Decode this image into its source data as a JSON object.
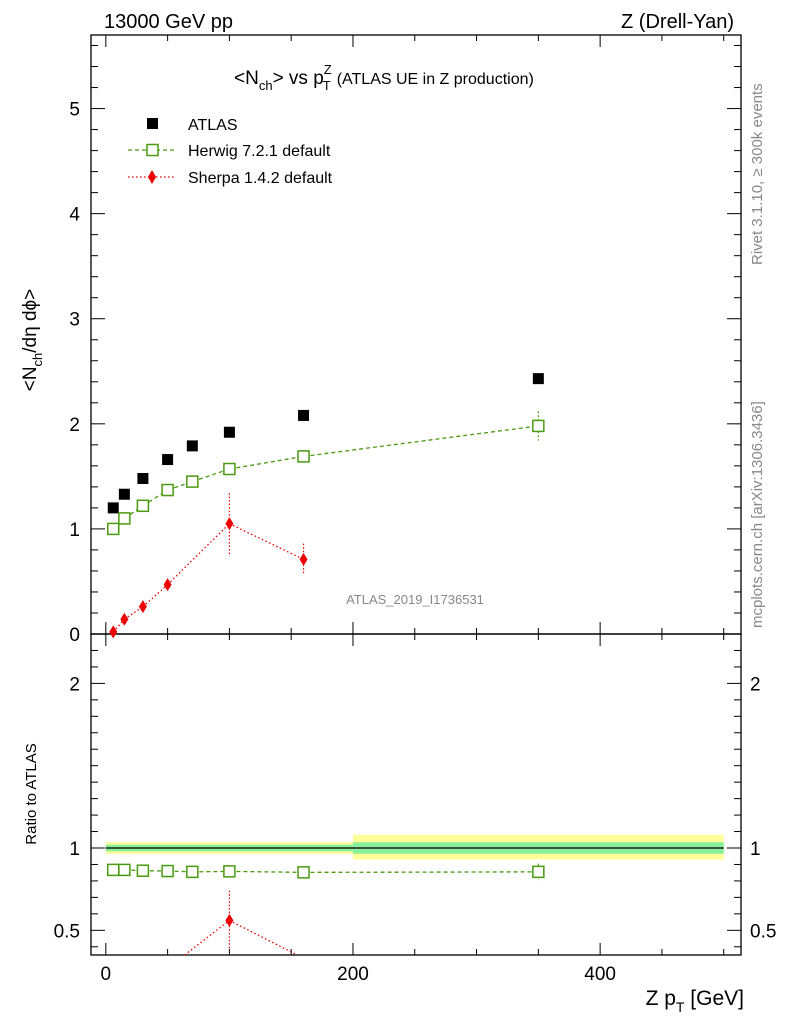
{
  "header": {
    "left": "13000 GeV pp",
    "right": "Z (Drell-Yan)"
  },
  "title": {
    "prefix": "<N",
    "sub": "ch",
    "mid": "> vs p",
    "sup": "Z",
    "subT": "T",
    "suffix": "(ATLAS UE in Z production)"
  },
  "side_text": {
    "rivet": "Rivet 3.1.10, ≥ 300k events",
    "mcplots": "mcplots.cern.ch [arXiv:1306.3436]"
  },
  "watermark": "ATLAS_2019_I1736531",
  "y_label_main": {
    "a": "<N",
    "sub": "ch",
    "b": "/dη dϕ>"
  },
  "y_label_ratio": "Ratio to ATLAS",
  "x_label": {
    "a": "Z p",
    "sub": "T",
    "b": " [GeV]"
  },
  "chart_data": [
    {
      "type": "scatter",
      "panel": "main",
      "xlim": [
        -12,
        514
      ],
      "ylim": [
        0,
        5.7
      ],
      "xticks": [
        0,
        200,
        400
      ],
      "yticks": [
        0,
        1,
        2,
        3,
        4,
        5
      ],
      "ytick_labels": [
        "0",
        "1",
        "2",
        "3",
        "4",
        "5"
      ],
      "legend_position": "top-left",
      "series": [
        {
          "name": "ATLAS",
          "color": "#000000",
          "marker": "filled-square",
          "points": [
            {
              "x": 6,
              "y": 1.2
            },
            {
              "x": 15,
              "y": 1.33
            },
            {
              "x": 30,
              "y": 1.48
            },
            {
              "x": 50,
              "y": 1.66
            },
            {
              "x": 70,
              "y": 1.79
            },
            {
              "x": 100,
              "y": 1.92
            },
            {
              "x": 160,
              "y": 2.08
            },
            {
              "x": 350,
              "y": 2.43
            }
          ]
        },
        {
          "name": "Herwig 7.2.1 default",
          "color": "#4a9a10",
          "marker": "open-square",
          "line": "dashed",
          "points": [
            {
              "x": 6,
              "y": 1.0,
              "err": 0.02
            },
            {
              "x": 15,
              "y": 1.1,
              "err": 0.02
            },
            {
              "x": 30,
              "y": 1.22,
              "err": 0.02
            },
            {
              "x": 50,
              "y": 1.37,
              "err": 0.02
            },
            {
              "x": 70,
              "y": 1.45,
              "err": 0.02
            },
            {
              "x": 100,
              "y": 1.57,
              "err": 0.02
            },
            {
              "x": 160,
              "y": 1.69,
              "err": 0.03
            },
            {
              "x": 350,
              "y": 1.98,
              "err": 0.14
            }
          ]
        },
        {
          "name": "Sherpa 1.4.2 default",
          "color": "#ee0000",
          "marker": "filled-diamond",
          "line": "dotted",
          "points": [
            {
              "x": 6,
              "y": 0.02,
              "err": 0.03
            },
            {
              "x": 15,
              "y": 0.14,
              "err": 0.05
            },
            {
              "x": 30,
              "y": 0.26,
              "err": 0.05
            },
            {
              "x": 50,
              "y": 0.47,
              "err": 0.03
            },
            {
              "x": 100,
              "y": 1.05,
              "err": 0.29
            },
            {
              "x": 160,
              "y": 0.71,
              "err": 0.15
            }
          ]
        }
      ]
    },
    {
      "type": "scatter",
      "panel": "ratio",
      "xlim": [
        -12,
        514
      ],
      "ylim": [
        0.35,
        2.3
      ],
      "xticks": [
        0,
        200,
        400
      ],
      "xtick_labels": [
        "0",
        "200",
        "400"
      ],
      "yticks": [
        0.5,
        1,
        2
      ],
      "ytick_labels": [
        "0.5",
        "1",
        "2"
      ],
      "bands": [
        {
          "x0": 0,
          "x1": 200,
          "yellow": [
            0.965,
            1.035
          ],
          "green": [
            0.98,
            1.02
          ]
        },
        {
          "x0": 200,
          "x1": 500,
          "yellow": [
            0.93,
            1.08
          ],
          "green": [
            0.965,
            1.035
          ]
        }
      ],
      "reference_line": 1,
      "series": [
        {
          "name": "Herwig 7.2.1 default",
          "color": "#4a9a10",
          "marker": "open-square",
          "line": "dashed",
          "points": [
            {
              "x": 6,
              "y": 0.867,
              "err": 0.012
            },
            {
              "x": 15,
              "y": 0.867,
              "err": 0.012
            },
            {
              "x": 30,
              "y": 0.862,
              "err": 0.012
            },
            {
              "x": 50,
              "y": 0.86,
              "err": 0.012
            },
            {
              "x": 70,
              "y": 0.855,
              "err": 0.012
            },
            {
              "x": 100,
              "y": 0.858,
              "err": 0.012
            },
            {
              "x": 160,
              "y": 0.852,
              "err": 0.015
            },
            {
              "x": 350,
              "y": 0.855,
              "err": 0.05
            }
          ]
        },
        {
          "name": "Sherpa 1.4.2 default",
          "color": "#ee0000",
          "marker": "filled-diamond",
          "line": "dotted",
          "points": [
            {
              "x": 50,
              "y": 0.27
            },
            {
              "x": 100,
              "y": 0.56,
              "err": 0.18
            },
            {
              "x": 160,
              "y": 0.33
            }
          ]
        }
      ]
    }
  ]
}
